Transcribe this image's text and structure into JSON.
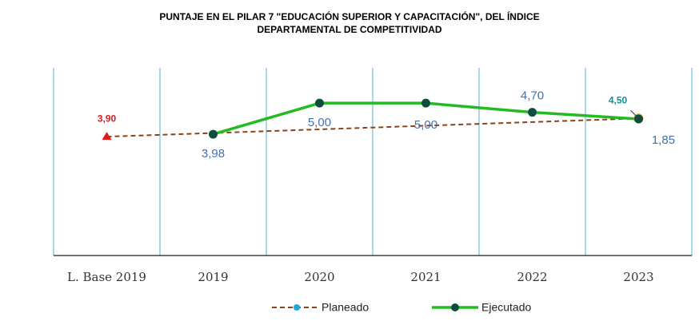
{
  "chart_data": {
    "type": "line",
    "title_lines": [
      "PUNTAJE EN EL PILAR 7 \"EDUCACIÓN SUPERIOR Y CAPACITACIÓN\", DEL ÍNDICE",
      "DEPARTAMENTAL  DE COMPETITIVIDAD"
    ],
    "categories": [
      "L. Base 2019",
      "2019",
      "2020",
      "2021",
      "2022",
      "2023"
    ],
    "ylim": [
      0,
      6
    ],
    "series": [
      {
        "name": "Planeado",
        "color": "#8b4513",
        "dashed": true,
        "values": [
          3.9,
          4.02,
          4.14,
          4.26,
          4.38,
          4.5
        ],
        "value_labels": [
          "3,90",
          null,
          null,
          null,
          null,
          "4,50"
        ]
      },
      {
        "name": "Ejecutado",
        "color": "#22bb22",
        "dashed": false,
        "values": [
          null,
          3.98,
          5.0,
          5.0,
          4.7,
          4.48
        ],
        "value_labels": [
          null,
          "3,98",
          "5,00",
          "5,00",
          "4,70",
          null
        ]
      }
    ],
    "annotations": [
      {
        "text": "1,85"
      }
    ]
  }
}
